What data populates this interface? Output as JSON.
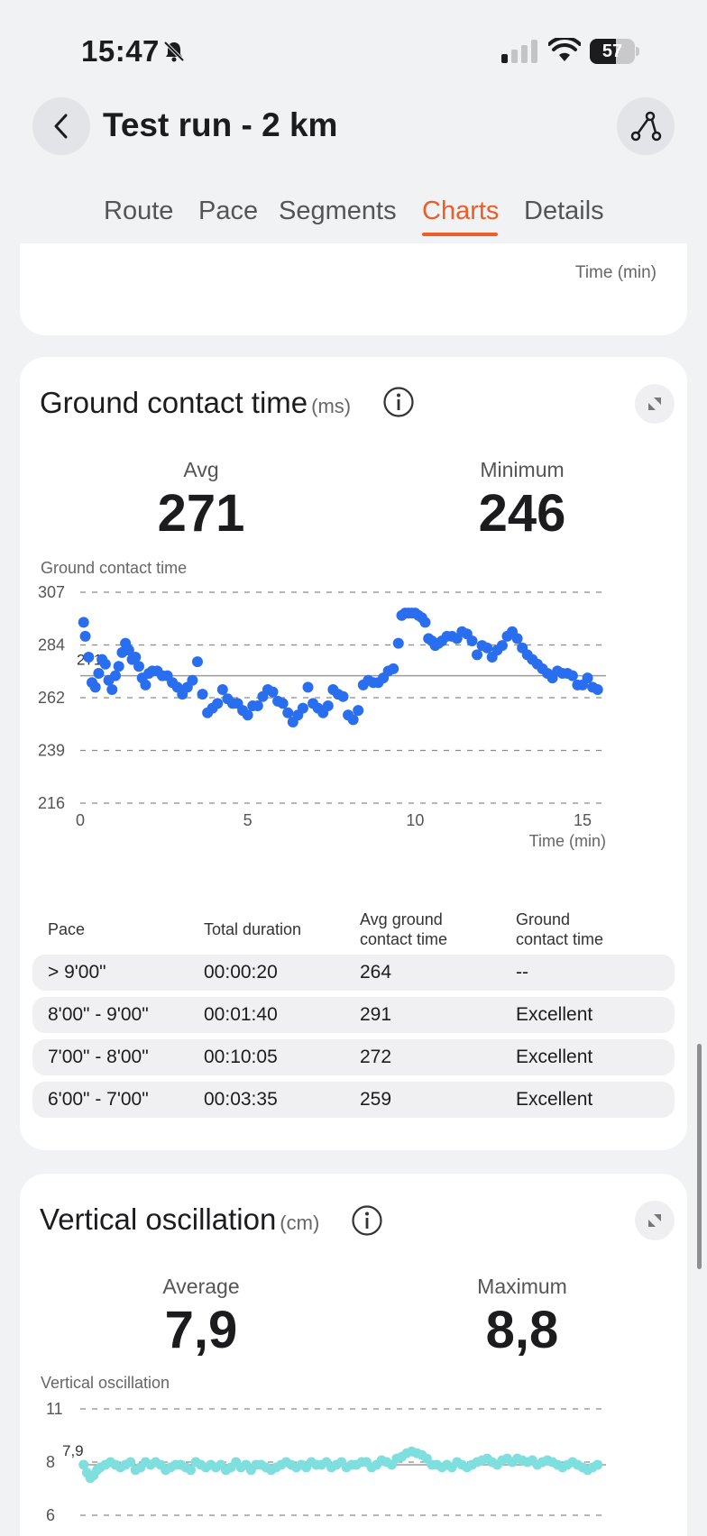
{
  "status_bar": {
    "time": "15:47",
    "battery": "57",
    "battery_level": 0.57
  },
  "header": {
    "title": "Test run - 2 km"
  },
  "tabs": [
    "Route",
    "Pace",
    "Segments",
    "Charts",
    "Details"
  ],
  "active_tab": "Charts",
  "previous_chart": {
    "x_axis_label": "Time (min)"
  },
  "ground_contact": {
    "title": "Ground contact time",
    "unit": "(ms)",
    "avg_label": "Avg",
    "avg_value": "271",
    "min_label": "Minimum",
    "min_value": "246",
    "chart_label": "Ground contact time",
    "x_axis_label": "Time (min)",
    "ref_label": "271",
    "table": {
      "headers": [
        "Pace",
        "Total duration",
        "Avg ground contact time",
        "Ground contact time"
      ],
      "rows": [
        [
          "> 9'00\"",
          "00:00:20",
          "264",
          "--"
        ],
        [
          "8'00\" - 9'00\"",
          "00:01:40",
          "291",
          "Excellent"
        ],
        [
          "7'00\" - 8'00\"",
          "00:10:05",
          "272",
          "Excellent"
        ],
        [
          "6'00\" - 7'00\"",
          "00:03:35",
          "259",
          "Excellent"
        ]
      ]
    }
  },
  "vertical_oscillation": {
    "title": "Vertical oscillation",
    "unit": "(cm)",
    "avg_label": "Average",
    "avg_value": "7,9",
    "max_label": "Maximum",
    "max_value": "8,8",
    "chart_label": "Vertical oscillation",
    "ref_label": "7,9"
  },
  "chart_data": [
    {
      "type": "scatter",
      "title": "Ground contact time",
      "xlabel": "Time (min)",
      "ylabel": "",
      "x_ticks": [
        "0",
        "5",
        "10",
        "15"
      ],
      "y_ticks": [
        "307",
        "284",
        "262",
        "239",
        "216"
      ],
      "xlim": [
        0,
        15.7
      ],
      "ylim": [
        216,
        307
      ],
      "reference_line": 271,
      "color": "#2a6ef0",
      "x": [
        0.1,
        0.15,
        0.25,
        0.35,
        0.45,
        0.55,
        0.65,
        0.75,
        0.85,
        0.95,
        1.05,
        1.15,
        1.25,
        1.35,
        1.45,
        1.55,
        1.65,
        1.75,
        1.85,
        1.95,
        2.05,
        2.15,
        2.3,
        2.45,
        2.6,
        2.75,
        2.9,
        3.05,
        3.2,
        3.35,
        3.5,
        3.65,
        3.8,
        3.95,
        4.1,
        4.25,
        4.4,
        4.55,
        4.7,
        4.85,
        5.0,
        5.15,
        5.3,
        5.45,
        5.6,
        5.75,
        5.9,
        6.05,
        6.2,
        6.35,
        6.5,
        6.65,
        6.8,
        6.95,
        7.1,
        7.25,
        7.4,
        7.55,
        7.7,
        7.85,
        8.0,
        8.15,
        8.3,
        8.45,
        8.6,
        8.75,
        8.9,
        9.05,
        9.2,
        9.35,
        9.5,
        9.6,
        9.7,
        9.8,
        9.9,
        10.0,
        10.1,
        10.2,
        10.3,
        10.4,
        10.5,
        10.6,
        10.7,
        10.8,
        10.95,
        11.1,
        11.25,
        11.4,
        11.55,
        11.7,
        11.85,
        12.0,
        12.15,
        12.3,
        12.45,
        12.6,
        12.75,
        12.9,
        13.05,
        13.2,
        13.35,
        13.5,
        13.65,
        13.8,
        13.95,
        14.1,
        14.25,
        14.4,
        14.55,
        14.7,
        14.85,
        15.0,
        15.15,
        15.3,
        15.45
      ],
      "y": [
        294,
        288,
        279,
        268,
        266,
        272,
        278,
        276,
        269,
        265,
        271,
        275,
        281,
        285,
        282,
        278,
        279,
        275,
        270,
        267,
        272,
        273,
        273,
        271,
        271,
        268,
        266,
        263,
        266,
        269,
        277,
        263,
        255,
        257,
        259,
        265,
        261,
        259,
        259,
        256,
        254,
        258,
        258,
        262,
        265,
        264,
        260,
        259,
        255,
        251,
        254,
        257,
        266,
        259,
        257,
        255,
        258,
        265,
        263,
        262,
        254,
        252,
        256,
        267,
        269,
        268,
        268,
        270,
        273,
        274,
        285,
        297,
        298,
        298,
        298,
        298,
        297,
        296,
        294,
        287,
        286,
        284,
        285,
        286,
        288,
        288,
        287,
        290,
        289,
        286,
        280,
        284,
        283,
        279,
        282,
        284,
        288,
        290,
        287,
        283,
        280,
        278,
        276,
        274,
        272,
        270,
        273,
        272,
        272,
        271,
        267,
        267,
        270,
        266,
        265
      ]
    },
    {
      "type": "scatter",
      "title": "Vertical oscillation",
      "xlabel": "",
      "ylabel": "",
      "y_ticks": [
        "11",
        "8",
        "6"
      ],
      "ylim": [
        6,
        11
      ],
      "reference_line": 7.9,
      "color": "#7fdede",
      "x": [
        0.1,
        0.2,
        0.3,
        0.4,
        0.5,
        0.6,
        0.75,
        0.9,
        1.05,
        1.2,
        1.35,
        1.5,
        1.65,
        1.8,
        1.95,
        2.1,
        2.25,
        2.4,
        2.55,
        2.7,
        2.85,
        3.0,
        3.15,
        3.3,
        3.45,
        3.6,
        3.75,
        3.9,
        4.05,
        4.2,
        4.35,
        4.5,
        4.65,
        4.8,
        4.95,
        5.1,
        5.25,
        5.4,
        5.55,
        5.7,
        5.85,
        6.0,
        6.15,
        6.3,
        6.45,
        6.6,
        6.75,
        6.9,
        7.05,
        7.2,
        7.35,
        7.5,
        7.65,
        7.8,
        7.95,
        8.1,
        8.25,
        8.4,
        8.55,
        8.7,
        8.85,
        9.0,
        9.15,
        9.3,
        9.45,
        9.6,
        9.75,
        9.9,
        10.05,
        10.2,
        10.35,
        10.5,
        10.65,
        10.8,
        10.95,
        11.1,
        11.25,
        11.4,
        11.55,
        11.7,
        11.85,
        12.0,
        12.15,
        12.3,
        12.45,
        12.6,
        12.75,
        12.9,
        13.05,
        13.2,
        13.35,
        13.5,
        13.65,
        13.8,
        13.95,
        14.1,
        14.25,
        14.4,
        14.55,
        14.7,
        14.85,
        15.0,
        15.15,
        15.3,
        15.45
      ],
      "y": [
        7.9,
        7.6,
        7.4,
        7.5,
        7.7,
        7.8,
        7.9,
        8.0,
        7.9,
        7.8,
        7.9,
        8.0,
        7.7,
        7.8,
        8.0,
        7.9,
        8.0,
        7.9,
        7.7,
        7.8,
        7.9,
        7.9,
        7.8,
        7.7,
        8.0,
        7.9,
        7.8,
        7.9,
        7.8,
        7.9,
        7.7,
        7.8,
        8.0,
        7.8,
        7.9,
        7.7,
        7.9,
        7.9,
        7.8,
        7.7,
        7.8,
        7.9,
        8.0,
        7.9,
        7.8,
        7.9,
        7.8,
        8.0,
        7.9,
        7.9,
        8.0,
        7.8,
        7.9,
        8.0,
        7.8,
        7.9,
        7.9,
        8.0,
        8.0,
        7.8,
        7.9,
        8.1,
        8.0,
        7.9,
        8.2,
        8.3,
        8.5,
        8.6,
        8.5,
        8.4,
        8.2,
        7.9,
        7.9,
        7.8,
        7.9,
        7.8,
        8.0,
        7.9,
        7.8,
        7.9,
        8.0,
        8.1,
        8.2,
        8.0,
        7.9,
        8.1,
        8.2,
        8.0,
        8.2,
        8.1,
        8.0,
        8.1,
        7.9,
        8.0,
        8.1,
        8.0,
        7.9,
        7.8,
        7.9,
        8.0,
        7.9,
        7.8,
        7.7,
        7.8,
        7.9
      ]
    }
  ]
}
